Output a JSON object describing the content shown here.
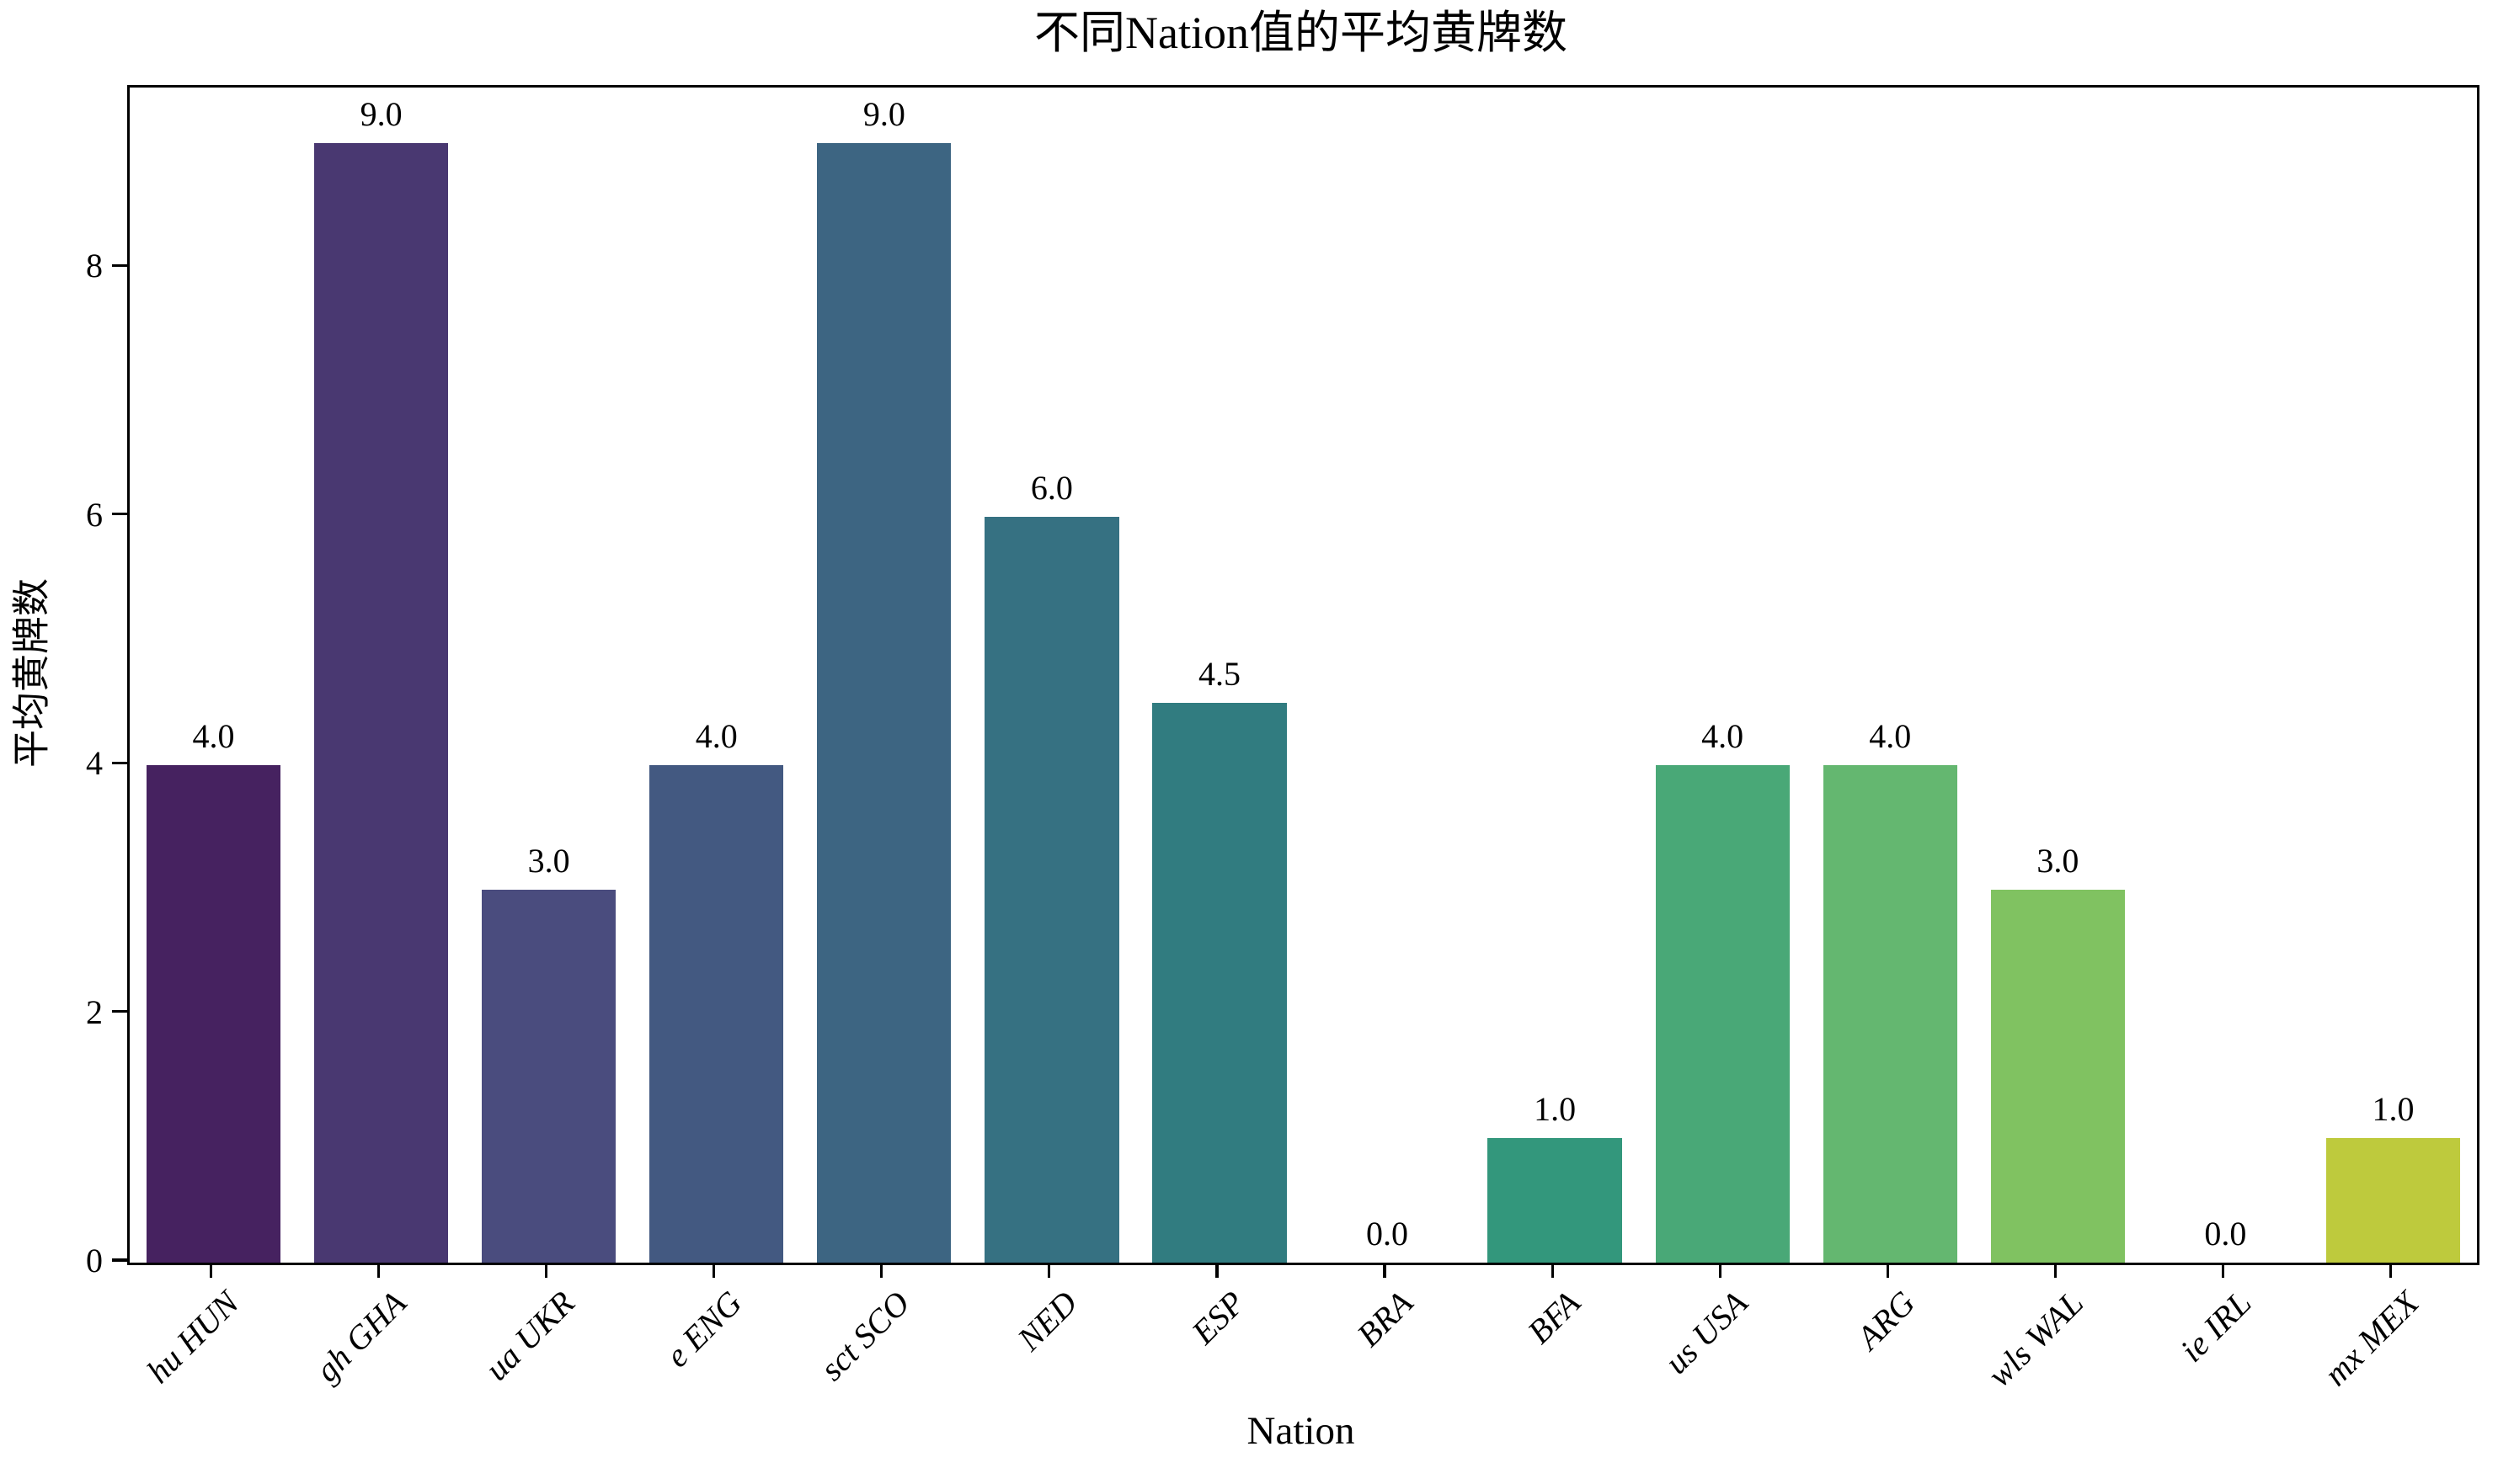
{
  "figure": {
    "title": "不同Nation值的平均黄牌数",
    "xlabel": "Nation",
    "ylabel": "平均黄牌数"
  },
  "chart_data": {
    "type": "bar",
    "title": "不同Nation值的平均黄牌数",
    "xlabel": "Nation",
    "ylabel": "平均黄牌数",
    "categories": [
      "hu HUN",
      "gh GHA",
      "ua UKR",
      "e ENG",
      "sct SCO",
      "NED",
      "ESP",
      "BRA",
      "BFA",
      "us USA",
      "ARG",
      "wls WAL",
      "ie IRL",
      "mx MEX"
    ],
    "values": [
      4.0,
      9.0,
      3.0,
      4.0,
      9.0,
      6.0,
      4.5,
      0.0,
      1.0,
      4.0,
      4.0,
      3.0,
      0.0,
      1.0
    ],
    "bar_labels": [
      "4.0",
      "9.0",
      "3.0",
      "4.0",
      "9.0",
      "6.0",
      "4.5",
      "0.0",
      "1.0",
      "4.0",
      "4.0",
      "3.0",
      "0.0",
      "1.0"
    ],
    "bar_colors": [
      "#462260",
      "#493871",
      "#4a4c7e",
      "#435981",
      "#3d6582",
      "#367182",
      "#317c80",
      "#308a7e",
      "#33977c",
      "#49a877",
      "#64b770",
      "#80c261",
      "#9fc649",
      "#beca3d"
    ],
    "ytick_labels": [
      "0",
      "2",
      "4",
      "6",
      "8"
    ],
    "yticks": [
      0,
      2,
      4,
      6,
      8
    ],
    "ylim": [
      0,
      9.45
    ],
    "xtick_rotation_deg": 45,
    "grid": false,
    "legend": null,
    "bar_width_fraction": 0.8,
    "text_color": "#000000",
    "spine_color": "#000000"
  }
}
